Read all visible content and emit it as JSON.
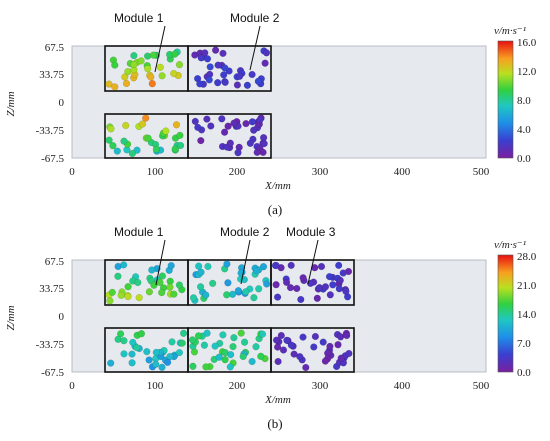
{
  "panels": [
    {
      "caption": "(a)",
      "modules": [
        "Module 1",
        "Module 2"
      ],
      "x_ticks": [
        "0",
        "100",
        "200",
        "300",
        "400",
        "500"
      ],
      "z_ticks": [
        "67.5",
        "33.75",
        "0",
        "-33.75",
        "-67.5"
      ],
      "x_label": "X/mm",
      "z_label": "Z/mm",
      "colorbar": {
        "title": "v/m·s⁻¹",
        "ticks": [
          "16.0",
          "12.0",
          "8.0",
          "4.0",
          "0.0"
        ],
        "max": 16.0
      }
    },
    {
      "caption": "(b)",
      "modules": [
        "Module 1",
        "Module 2",
        "Module 3"
      ],
      "x_ticks": [
        "0",
        "100",
        "200",
        "300",
        "400",
        "500"
      ],
      "z_ticks": [
        "67.5",
        "33.75",
        "0",
        "-33.75",
        "-67.5"
      ],
      "x_label": "X/mm",
      "z_label": "Z/mm",
      "colorbar": {
        "title": "v/m·s⁻¹",
        "ticks": [
          "28.0",
          "21.0",
          "14.0",
          "7.0",
          "0.0"
        ],
        "max": 28.0
      }
    }
  ],
  "colors": {
    "domain_bg": "#e6e9ee",
    "particle_slow": "#6a2a9a",
    "particle_fast": "#e84020"
  }
}
